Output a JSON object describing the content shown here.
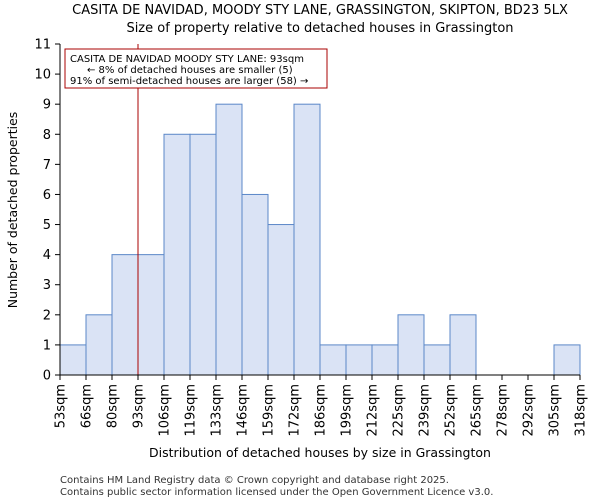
{
  "chart_data": {
    "type": "bar",
    "title": "CASITA DE NAVIDAD, MOODY STY LANE, GRASSINGTON, SKIPTON, BD23 5LX",
    "subtitle": "Size of property relative to detached houses in Grassington",
    "xlabel": "Distribution of detached houses by size in Grassington",
    "ylabel": "Number of detached properties",
    "x_ticks": [
      "53sqm",
      "66sqm",
      "80sqm",
      "93sqm",
      "106sqm",
      "119sqm",
      "133sqm",
      "146sqm",
      "159sqm",
      "172sqm",
      "186sqm",
      "199sqm",
      "212sqm",
      "225sqm",
      "239sqm",
      "252sqm",
      "265sqm",
      "278sqm",
      "292sqm",
      "305sqm",
      "318sqm"
    ],
    "values": [
      1,
      2,
      4,
      4,
      8,
      8,
      9,
      6,
      5,
      9,
      1,
      1,
      1,
      2,
      1,
      2,
      0,
      0,
      0,
      1
    ],
    "ylim": [
      0,
      11
    ],
    "y_ticks": [
      0,
      1,
      2,
      3,
      4,
      5,
      6,
      7,
      8,
      9,
      10,
      11
    ],
    "grid": false,
    "colors": {
      "bar_fill": "#dae3f5",
      "bar_stroke": "#5b87c8",
      "marker_line": "#aa0000",
      "annotation_border": "#aa0000"
    },
    "marker": {
      "value": "93sqm"
    },
    "annotation": {
      "lines": [
        "CASITA DE NAVIDAD MOODY STY LANE: 93sqm",
        "← 8% of detached houses are smaller (5)",
        "91% of semi-detached houses are larger (58) →"
      ]
    }
  },
  "footer": {
    "line1": "Contains HM Land Registry data © Crown copyright and database right 2025.",
    "line2": "Contains public sector information licensed under the Open Government Licence v3.0."
  }
}
